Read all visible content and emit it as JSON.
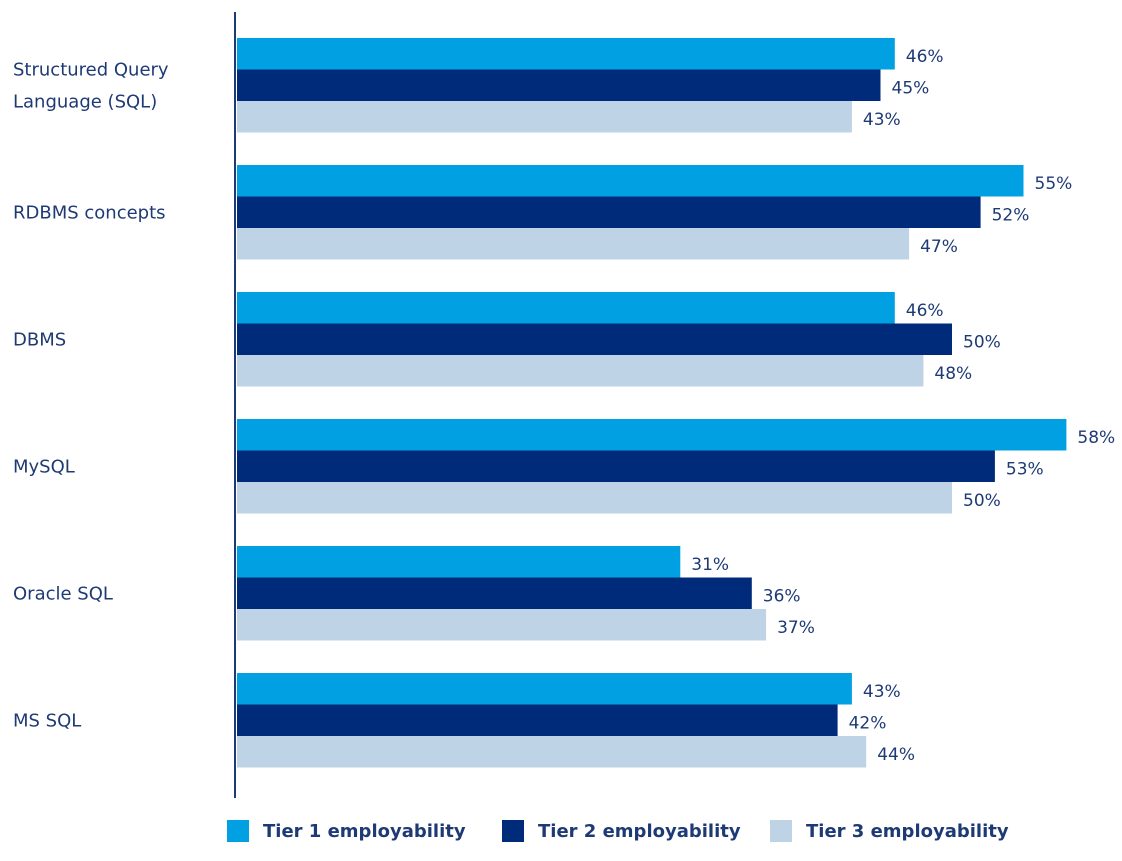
{
  "chart_data": {
    "type": "bar",
    "orientation": "horizontal",
    "categories": [
      [
        "Structured Query",
        "Language (SQL)"
      ],
      [
        "RDBMS concepts"
      ],
      [
        "DBMS"
      ],
      [
        "MySQL"
      ],
      [
        "Oracle SQL"
      ],
      [
        "MS SQL"
      ]
    ],
    "series": [
      {
        "name": "Tier 1 employability",
        "color": "#00a0e2",
        "values": [
          46,
          55,
          46,
          58,
          31,
          43
        ]
      },
      {
        "name": "Tier 2 employability",
        "color": "#002b7a",
        "values": [
          45,
          52,
          50,
          53,
          36,
          42
        ]
      },
      {
        "name": "Tier 3 employability",
        "color": "#bed3e5",
        "values": [
          43,
          47,
          48,
          50,
          37,
          44
        ]
      }
    ],
    "value_suffix": "%",
    "xlim": [
      0,
      58
    ],
    "grid": false,
    "legend_position": "bottom",
    "axis_color": "#1e3a75",
    "label_color": "#1e3a75"
  }
}
